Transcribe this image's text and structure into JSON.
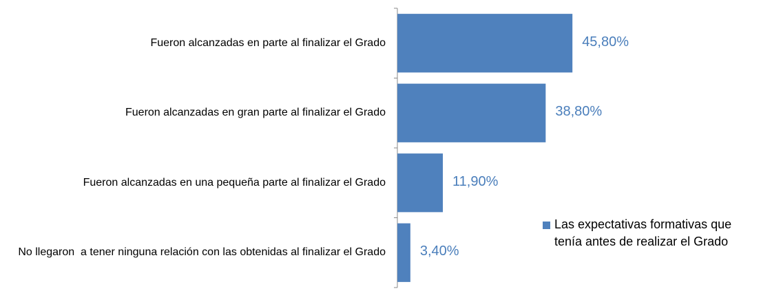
{
  "chart_data": {
    "type": "bar",
    "orientation": "horizontal",
    "categories": [
      "Fueron alcanzadas en parte al finalizar el Grado",
      "Fueron alcanzadas en gran parte al finalizar el Grado",
      "Fueron alcanzadas en una pequeña parte al finalizar el Grado",
      "No llegaron  a tener ninguna relación con las obtenidas al finalizar el Grado"
    ],
    "series": [
      {
        "name": "Las expectativas formativas que tenía antes de realizar el Grado",
        "color": "#4f81bd",
        "values": [
          45.8,
          38.8,
          11.9,
          3.4
        ],
        "value_labels": [
          "45,80%",
          "38,80%",
          "11,90%",
          "3,40%"
        ]
      }
    ],
    "legend": "right"
  }
}
